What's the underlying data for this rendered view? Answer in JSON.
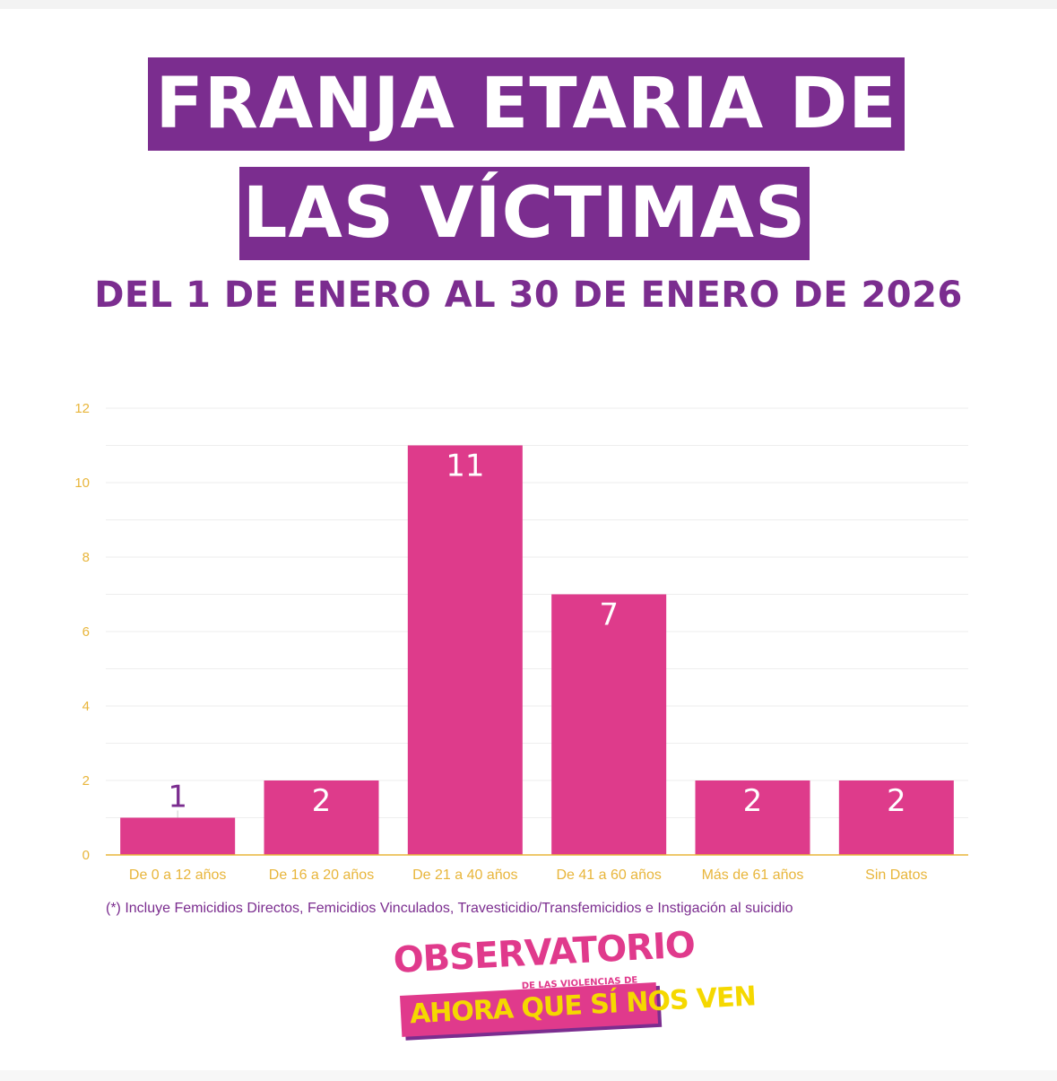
{
  "title_line1": "FRANJA ETARIA DE",
  "title_line2": "LAS VÍCTIMAS",
  "subtitle": "DEL 1 DE ENERO AL 30 DE ENERO DE 2026",
  "footnote": "(*) Incluye Femicidios Directos, Femicidios Vinculados,  Travesticidio/Transfemicidios e Instigación al suicidio",
  "logo": {
    "line1": "OBSERVATORIO",
    "line2": "DE LAS VIOLENCIAS DE GÉNERO",
    "line3": "AHORA QUE SÍ NOS VEN"
  },
  "colors": {
    "title_bg": "#7b2d8f",
    "bar": "#de3b8b",
    "axis_text": "#e8b53a",
    "grid": "#eeeeee",
    "label_inside": "#ffffff",
    "label_outside": "#7b2d8f"
  },
  "chart_data": {
    "type": "bar",
    "categories": [
      "De 0 a 12 años",
      "De 16 a 20 años",
      "De 21 a 40 años",
      "De 41 a 60 años",
      "Más de 61 años",
      "Sin Datos"
    ],
    "values": [
      1,
      2,
      11,
      7,
      2,
      2
    ],
    "data_labels": [
      "1",
      "2",
      "11",
      "7",
      "2",
      "2"
    ],
    "yticks": [
      "0",
      "2",
      "4",
      "6",
      "8",
      "10",
      "12"
    ],
    "ylim": [
      0,
      12
    ],
    "grid": true,
    "legend": "none"
  }
}
